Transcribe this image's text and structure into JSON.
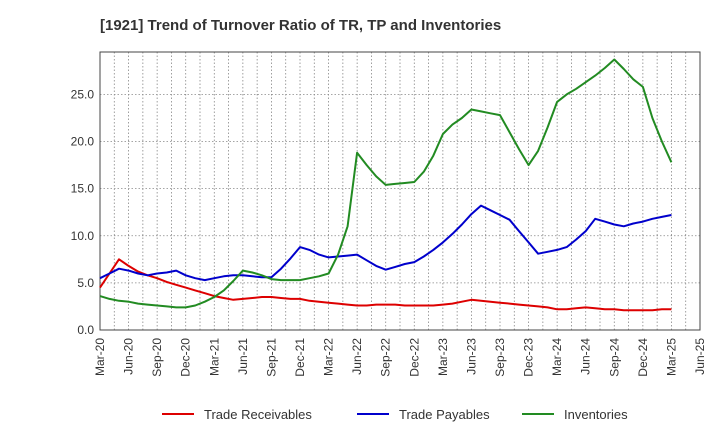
{
  "chart_data": {
    "type": "line",
    "title": "[1921]  Trend of Turnover Ratio of TR, TP and Inventories",
    "xlabel": "",
    "ylabel": "",
    "ylim": [
      0,
      29.5
    ],
    "yticks": [
      "0.0",
      "5.0",
      "10.0",
      "15.0",
      "20.0",
      "25.0"
    ],
    "ytick_values": [
      0,
      5,
      10,
      15,
      20,
      25
    ],
    "xticks": [
      "Mar-20",
      "Jun-20",
      "Sep-20",
      "Dec-20",
      "Mar-21",
      "Jun-21",
      "Sep-21",
      "Dec-21",
      "Mar-22",
      "Jun-22",
      "Sep-22",
      "Dec-22",
      "Mar-23",
      "Jun-23",
      "Sep-23",
      "Dec-23",
      "Mar-24",
      "Jun-24",
      "Sep-24",
      "Dec-24",
      "Mar-25",
      "Jun-25"
    ],
    "grid": true,
    "legend_position": "bottom",
    "x": [
      "Mar-20",
      "Apr-20",
      "May-20",
      "Jun-20",
      "Jul-20",
      "Aug-20",
      "Sep-20",
      "Oct-20",
      "Nov-20",
      "Dec-20",
      "Jan-21",
      "Feb-21",
      "Mar-21",
      "Apr-21",
      "May-21",
      "Jun-21",
      "Jul-21",
      "Aug-21",
      "Sep-21",
      "Oct-21",
      "Nov-21",
      "Dec-21",
      "Jan-22",
      "Feb-22",
      "Mar-22",
      "Apr-22",
      "May-22",
      "Jun-22",
      "Jul-22",
      "Aug-22",
      "Sep-22",
      "Oct-22",
      "Nov-22",
      "Dec-22",
      "Jan-23",
      "Feb-23",
      "Mar-23",
      "Apr-23",
      "May-23",
      "Jun-23",
      "Jul-23",
      "Aug-23",
      "Sep-23",
      "Oct-23",
      "Nov-23",
      "Dec-23",
      "Jan-24",
      "Feb-24",
      "Mar-24",
      "Apr-24",
      "May-24",
      "Jun-24",
      "Jul-24",
      "Aug-24",
      "Sep-24",
      "Oct-24",
      "Nov-24",
      "Dec-24",
      "Jan-25",
      "Feb-25",
      "Mar-25"
    ],
    "series": [
      {
        "name": "Trade Receivables",
        "color": "#dd0000",
        "values": [
          4.5,
          6.0,
          7.5,
          6.8,
          6.2,
          5.8,
          5.5,
          5.1,
          4.8,
          4.5,
          4.2,
          3.9,
          3.6,
          3.4,
          3.2,
          3.3,
          3.4,
          3.5,
          3.5,
          3.4,
          3.3,
          3.3,
          3.1,
          3.0,
          2.9,
          2.8,
          2.7,
          2.6,
          2.6,
          2.7,
          2.7,
          2.7,
          2.6,
          2.6,
          2.6,
          2.6,
          2.7,
          2.8,
          3.0,
          3.2,
          3.1,
          3.0,
          2.9,
          2.8,
          2.7,
          2.6,
          2.5,
          2.4,
          2.2,
          2.2,
          2.3,
          2.4,
          2.3,
          2.2,
          2.2,
          2.1,
          2.1,
          2.1,
          2.1,
          2.2,
          2.2
        ]
      },
      {
        "name": "Trade Payables",
        "color": "#0000cc",
        "values": [
          5.5,
          6.0,
          6.5,
          6.3,
          6.0,
          5.8,
          6.0,
          6.1,
          6.3,
          5.8,
          5.5,
          5.3,
          5.5,
          5.7,
          5.8,
          5.8,
          5.7,
          5.6,
          5.6,
          6.5,
          7.6,
          8.8,
          8.5,
          8.0,
          7.7,
          7.8,
          7.9,
          8.0,
          7.4,
          6.8,
          6.4,
          6.7,
          7.0,
          7.2,
          7.8,
          8.5,
          9.3,
          10.2,
          11.2,
          12.3,
          13.2,
          12.7,
          12.2,
          11.7,
          10.5,
          9.3,
          8.1,
          8.3,
          8.5,
          8.8,
          9.6,
          10.5,
          11.8,
          11.5,
          11.2,
          11.0,
          11.3,
          11.5,
          11.8,
          12.0,
          12.2
        ]
      },
      {
        "name": "Inventories",
        "color": "#228b22",
        "values": [
          3.6,
          3.3,
          3.1,
          3.0,
          2.8,
          2.7,
          2.6,
          2.5,
          2.4,
          2.4,
          2.6,
          3.0,
          3.5,
          4.2,
          5.2,
          6.3,
          6.1,
          5.8,
          5.4,
          5.3,
          5.3,
          5.3,
          5.5,
          5.7,
          6.0,
          8.0,
          11.0,
          18.8,
          17.5,
          16.3,
          15.4,
          15.5,
          15.6,
          15.7,
          16.8,
          18.5,
          20.8,
          21.8,
          22.5,
          23.4,
          23.2,
          23.0,
          22.8,
          21.0,
          19.2,
          17.5,
          19.0,
          21.5,
          24.2,
          25.0,
          25.6,
          26.3,
          27.0,
          27.8,
          28.7,
          27.7,
          26.6,
          25.8,
          22.5,
          20.0,
          17.8
        ]
      }
    ]
  }
}
